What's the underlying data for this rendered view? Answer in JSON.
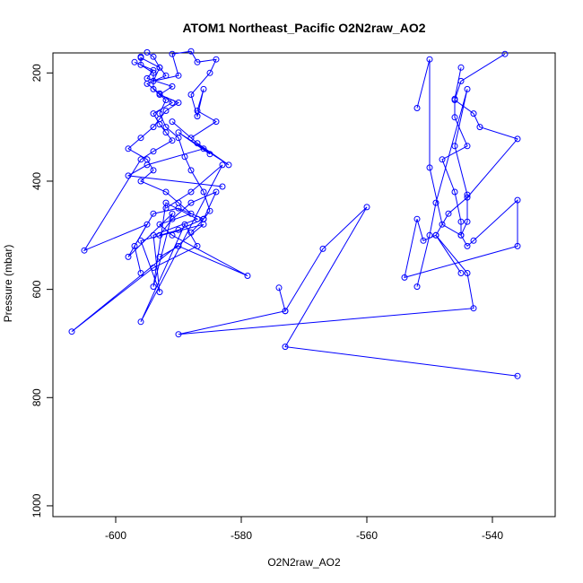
{
  "chart_data": {
    "type": "line",
    "title": "ATOM1 Northeast_Pacific O2N2raw_AO2",
    "xlabel": "O2N2raw_AO2",
    "ylabel": "Pressure (mbar)",
    "xlim": [
      -610,
      -530
    ],
    "ylim": [
      1020,
      163
    ],
    "y_inverted": true,
    "grid": false,
    "color": "#0000ff",
    "x_ticks": [
      -600,
      -580,
      -560,
      -540
    ],
    "x_tick_labels": [
      "-600",
      "-580",
      "-560",
      "-540"
    ],
    "y_ticks": [
      200,
      400,
      600,
      800,
      1000
    ],
    "y_tick_labels": [
      "200",
      "400",
      "600",
      "800",
      "1000"
    ],
    "series": [
      {
        "x": [
          -595,
          -594,
          -593,
          -594,
          -590,
          -591,
          -588,
          -587,
          -584,
          -585,
          -588,
          -587,
          -586,
          -587,
          -584,
          -588,
          -585,
          -590,
          -582,
          -587,
          -591,
          -586,
          -595,
          -598,
          -583
        ],
        "y": [
          162,
          170,
          190,
          215,
          205,
          165,
          160,
          180,
          175,
          200,
          240,
          280,
          230,
          270,
          290,
          320,
          350,
          310,
          370,
          330,
          290,
          340,
          370,
          390,
          410
        ]
      },
      {
        "x": [
          -596,
          -596,
          -594,
          -594,
          -592,
          -593,
          -592,
          -590,
          -589,
          -588,
          -586,
          -585,
          -586,
          -590,
          -593,
          -591,
          -588,
          -584,
          -586,
          -588,
          -586,
          -590,
          -594,
          -597,
          -596
        ],
        "y": [
          170,
          185,
          200,
          230,
          250,
          275,
          300,
          320,
          355,
          380,
          420,
          455,
          470,
          490,
          500,
          470,
          440,
          420,
          470,
          495,
          470,
          450,
          460,
          520,
          570
        ]
      },
      {
        "x": [
          -597,
          -594,
          -595,
          -591,
          -593,
          -590,
          -592,
          -593,
          -594,
          -596,
          -598,
          -595,
          -594,
          -596,
          -592,
          -590,
          -588,
          -593,
          -591,
          -579,
          -590,
          -593
        ],
        "y": [
          180,
          195,
          210,
          225,
          240,
          255,
          270,
          285,
          300,
          320,
          340,
          360,
          380,
          400,
          420,
          440,
          460,
          480,
          500,
          575,
          520,
          540
        ]
      },
      {
        "x": [
          -596,
          -593,
          -592,
          -595,
          -593,
          -591,
          -594,
          -593,
          -592,
          -591,
          -594,
          -596,
          -605,
          -595,
          -598,
          -591,
          -594,
          -592,
          -587,
          -594,
          -593,
          -596,
          -586,
          -607,
          -594,
          -587,
          -589,
          -596,
          -583,
          -588,
          -592
        ],
        "y": [
          172,
          190,
          205,
          220,
          238,
          255,
          275,
          295,
          310,
          325,
          345,
          360,
          528,
          480,
          540,
          460,
          595,
          440,
          470,
          500,
          605,
          510,
          480,
          678,
          560,
          520,
          480,
          660,
          370,
          420,
          450
        ]
      },
      {
        "x": [
          -552,
          -550,
          -550,
          -548,
          -545,
          -544,
          -544,
          -546,
          -544,
          -549,
          -550,
          -552
        ],
        "y": [
          265,
          175,
          375,
          480,
          500,
          475,
          425,
          335,
          230,
          440,
          500,
          595
        ]
      },
      {
        "x": [
          -545,
          -546,
          -546,
          -544,
          -548,
          -546,
          -545,
          -545,
          -544,
          -543,
          -536,
          -536,
          -554,
          -552,
          -551,
          -549,
          -545
        ],
        "y": [
          190,
          248,
          282,
          335,
          360,
          420,
          475,
          500,
          520,
          510,
          435,
          520,
          578,
          470,
          510,
          500,
          570
        ]
      },
      {
        "x": [
          -538,
          -545,
          -546,
          -543,
          -542,
          -536,
          -544,
          -547,
          -549,
          -544,
          -543,
          -590,
          -573
        ],
        "y": [
          165,
          215,
          250,
          275,
          300,
          322,
          430,
          460,
          500,
          570,
          635,
          683,
          640
        ]
      },
      {
        "x": [
          -574,
          -573,
          -567,
          -560,
          -573,
          -536
        ],
        "y": [
          597,
          640,
          525,
          448,
          706,
          760
        ]
      }
    ]
  }
}
